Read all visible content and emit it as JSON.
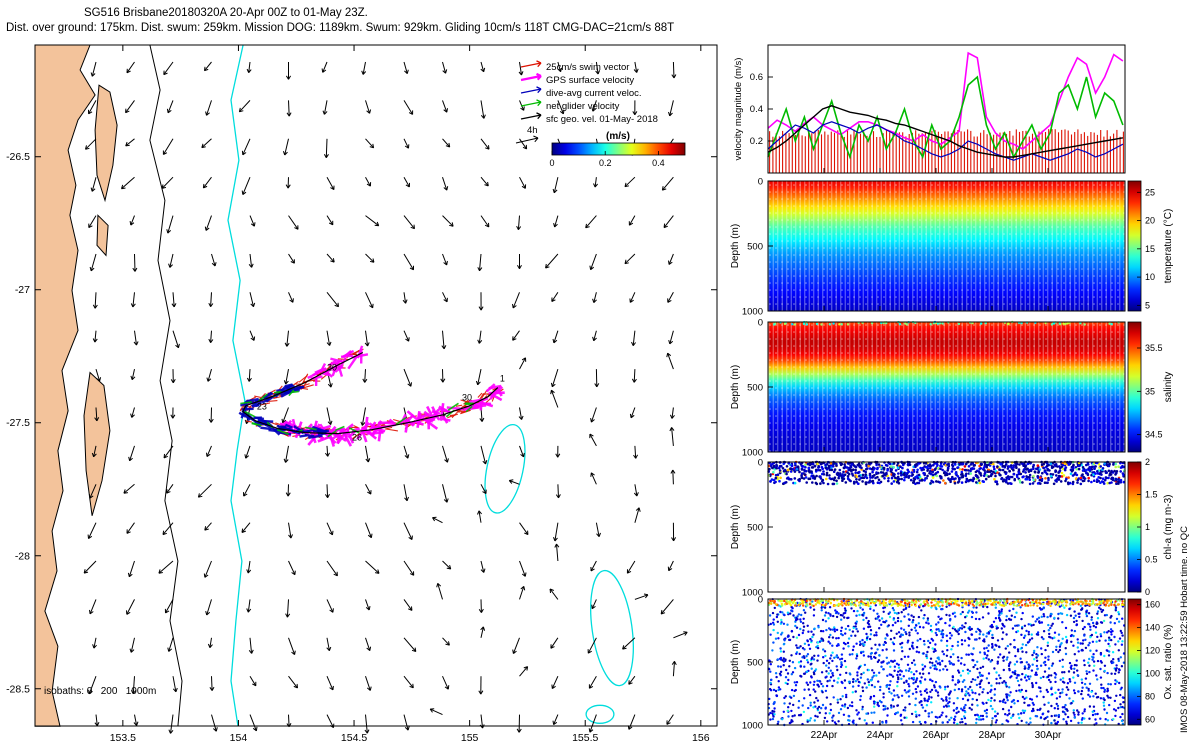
{
  "title": "SG516 Brisbane20180320A 20-Apr 00Z to 01-May 23Z.",
  "subtitle": "Dist. over ground: 175km. Dist. swum: 259km. Mission DOG: 1189km. Swum: 929km. Gliding 10cm/s 118T CMG-DAC=21cm/s 88T",
  "watermark": "IMOS 08-May-2018 13:22:59 Hobart time. no QC",
  "colors": {
    "land": "#f3c39b",
    "coast": "#000000",
    "isobath1000": "#00dddd",
    "swim": "#dd1100",
    "gps": "#ff00ff",
    "dive": "#0000bb",
    "net": "#00bb00",
    "geo": "#000000"
  },
  "time_axis": {
    "x_range_days": [
      0,
      12.75
    ],
    "tick_days": [
      2,
      4,
      6,
      8,
      10
    ],
    "tick_labels": [
      "22Apr",
      "24Apr",
      "26Apr",
      "28Apr",
      "30Apr"
    ]
  },
  "map": {
    "xticks": [
      153.5,
      154,
      154.5,
      155,
      155.5,
      156
    ],
    "yticks": [
      -26.5,
      -27,
      -27.5,
      -28,
      -28.5
    ],
    "isobath_note": "isobaths: 0   200   1000m",
    "legend_entries": [
      {
        "label": "25cm/s swim vector",
        "color_key": "swim"
      },
      {
        "label": "GPS surface velocity",
        "color_key": "gps"
      },
      {
        "label": "dive-avg current veloc.",
        "color_key": "dive"
      },
      {
        "label": "net glider velocity",
        "color_key": "net"
      },
      {
        "label": "sfc geo. vel. 01-May- 2018",
        "color_key": "geo"
      }
    ],
    "legend_scale_label": "4h",
    "colorbar": {
      "label": "(m/s)",
      "ticks": [
        0,
        0.2,
        0.4
      ],
      "range": [
        0,
        0.5
      ]
    }
  },
  "chart_data": [
    {
      "id": "map",
      "type": "scatter",
      "xlim": [
        153.12,
        156.07
      ],
      "ylim": [
        -28.64,
        -26.08
      ],
      "mainland": [
        [
          153.12,
          -26.08
        ],
        [
          153.358,
          -26.08
        ],
        [
          153.315,
          -26.174
        ],
        [
          153.38,
          -26.268
        ],
        [
          153.306,
          -26.362
        ],
        [
          153.263,
          -26.475
        ],
        [
          153.297,
          -26.607
        ],
        [
          153.271,
          -26.72
        ],
        [
          153.306,
          -26.852
        ],
        [
          153.28,
          -27.003
        ],
        [
          153.306,
          -27.153
        ],
        [
          153.237,
          -27.304
        ],
        [
          153.263,
          -27.455
        ],
        [
          153.219,
          -27.605
        ],
        [
          153.241,
          -27.756
        ],
        [
          153.194,
          -27.907
        ],
        [
          153.215,
          -28.057
        ],
        [
          153.163,
          -28.208
        ],
        [
          153.219,
          -28.34
        ],
        [
          153.194,
          -28.51
        ],
        [
          153.228,
          -28.641
        ],
        [
          153.12,
          -28.641
        ]
      ],
      "islands": [
        [
          [
            153.397,
            -26.231
          ],
          [
            153.444,
            -26.257
          ],
          [
            153.475,
            -26.381
          ],
          [
            153.457,
            -26.532
          ],
          [
            153.423,
            -26.664
          ],
          [
            153.388,
            -26.57
          ],
          [
            153.38,
            -26.4
          ]
        ],
        [
          [
            153.392,
            -26.72
          ],
          [
            153.436,
            -26.758
          ],
          [
            153.427,
            -26.871
          ],
          [
            153.388,
            -26.833
          ]
        ],
        [
          [
            153.358,
            -27.311
          ],
          [
            153.418,
            -27.36
          ],
          [
            153.444,
            -27.53
          ],
          [
            153.41,
            -27.718
          ],
          [
            153.367,
            -27.85
          ],
          [
            153.341,
            -27.68
          ],
          [
            153.332,
            -27.473
          ]
        ]
      ],
      "isobath_200m": [
        [
          153.617,
          -26.08
        ],
        [
          153.661,
          -26.249
        ],
        [
          153.617,
          -26.438
        ],
        [
          153.682,
          -26.664
        ],
        [
          153.652,
          -26.89
        ],
        [
          153.704,
          -27.116
        ],
        [
          153.661,
          -27.342
        ],
        [
          153.713,
          -27.568
        ],
        [
          153.682,
          -27.793
        ],
        [
          153.738,
          -28.02
        ],
        [
          153.704,
          -28.245
        ],
        [
          153.756,
          -28.471
        ],
        [
          153.738,
          -28.641
        ]
      ],
      "isobath_1000m": [
        [
          154.02,
          -26.08
        ],
        [
          153.968,
          -26.287
        ],
        [
          154.002,
          -26.513
        ],
        [
          153.955,
          -26.739
        ],
        [
          154.007,
          -26.965
        ],
        [
          153.976,
          -27.191
        ],
        [
          154.028,
          -27.417
        ],
        [
          153.994,
          -27.605
        ],
        [
          153.968,
          -27.793
        ],
        [
          154.015,
          -28.02
        ],
        [
          153.989,
          -28.245
        ],
        [
          153.968,
          -28.471
        ],
        [
          153.998,
          -28.641
        ]
      ],
      "seamount_contours": [
        {
          "cx": 155.153,
          "cy": -27.673,
          "rx": 0.078,
          "ry": 0.169,
          "rot": 12
        },
        {
          "cx": 155.616,
          "cy": -28.272,
          "rx": 0.086,
          "ry": 0.218,
          "rot": -8
        },
        {
          "cx": 155.564,
          "cy": -28.596,
          "rx": 0.06,
          "ry": 0.034,
          "rot": 0
        }
      ],
      "track": [
        [
          154.538,
          -27.236
        ],
        [
          154.417,
          -27.289
        ],
        [
          154.288,
          -27.349
        ],
        [
          154.145,
          -27.402
        ],
        [
          154.032,
          -27.436
        ],
        [
          154.019,
          -27.458
        ],
        [
          154.071,
          -27.492
        ],
        [
          154.171,
          -27.522
        ],
        [
          154.288,
          -27.537
        ],
        [
          154.43,
          -27.541
        ],
        [
          154.577,
          -27.526
        ],
        [
          154.733,
          -27.5
        ],
        [
          154.884,
          -27.47
        ],
        [
          155.001,
          -27.436
        ],
        [
          155.079,
          -27.402
        ],
        [
          155.122,
          -27.368
        ]
      ],
      "track_date_labels": [
        {
          "text": "20",
          "lon": 154.383,
          "lat": -27.304
        },
        {
          "text": "23",
          "lon": 154.08,
          "lat": -27.451
        },
        {
          "text": "26",
          "lon": 154.491,
          "lat": -27.567
        },
        {
          "text": "30",
          "lon": 154.967,
          "lat": -27.417
        },
        {
          "text": "1",
          "lon": 155.131,
          "lat": -27.345
        }
      ],
      "track_decorations": [
        {
          "name": "swim-vectors",
          "color_key": "swim",
          "count": 170,
          "t0": 0,
          "t1": 1,
          "len": 9,
          "width": 1.1,
          "spread": 5,
          "angle_jitter": 70
        },
        {
          "name": "gps-surface-right",
          "color_key": "gps",
          "count": 100,
          "t0": 0.45,
          "t1": 1,
          "len": 13,
          "width": 2.6,
          "spread": 6,
          "angle_jitter": 160
        },
        {
          "name": "gps-surface-left",
          "color_key": "gps",
          "count": 26,
          "t0": 0,
          "t1": 0.14,
          "len": 12,
          "width": 2.4,
          "spread": 6,
          "angle_jitter": 160
        },
        {
          "name": "dive-avg-current",
          "color_key": "dive",
          "count": 70,
          "t0": 0.18,
          "t1": 0.55,
          "len": 11,
          "width": 2.4,
          "spread": 4,
          "angle_jitter": 50
        },
        {
          "name": "net-glider",
          "color_key": "net",
          "count": 22,
          "t0": 0.1,
          "t1": 0.95,
          "len": 9,
          "width": 1.6,
          "spread": 5,
          "angle_jitter": 80
        }
      ],
      "surface_vector_grid": {
        "lon0": 153.384,
        "dlon": 0.1665,
        "cols": 16,
        "lat0": -26.144,
        "dlat": 0.1443,
        "rows": 18,
        "seed": 11,
        "base_len": 10,
        "len_var": 9
      }
    },
    {
      "id": "velocity",
      "type": "line",
      "ylabel": "velocity magnitude (m/s)",
      "ylim": [
        0,
        0.8
      ],
      "yticks": [
        0.2,
        0.4,
        0.6
      ],
      "x_start_day": 0,
      "x_step_day": 0.325,
      "swim_reference": {
        "label": "25cm/s swim vector",
        "value": 0.25,
        "color_key": "swim",
        "bar_count": 110
      },
      "series": [
        {
          "name": "GPS surface velocity",
          "color_key": "gps",
          "width": 1.6,
          "values": [
            0.28,
            0.33,
            0.3,
            0.26,
            0.31,
            0.35,
            0.3,
            0.27,
            0.24,
            0.28,
            0.32,
            0.32,
            0.3,
            0.27,
            0.25,
            0.22,
            0.2,
            0.24,
            0.2,
            0.18,
            0.22,
            0.26,
            0.75,
            0.72,
            0.35,
            0.25,
            0.2,
            0.18,
            0.15,
            0.2,
            0.25,
            0.3,
            0.45,
            0.6,
            0.72,
            0.68,
            0.5,
            0.6,
            0.74,
            0.7
          ]
        },
        {
          "name": "net glider velocity",
          "color_key": "net",
          "width": 1.6,
          "values": [
            0.1,
            0.25,
            0.4,
            0.2,
            0.35,
            0.15,
            0.3,
            0.45,
            0.25,
            0.1,
            0.3,
            0.2,
            0.35,
            0.15,
            0.25,
            0.4,
            0.2,
            0.1,
            0.3,
            0.15,
            0.2,
            0.35,
            0.55,
            0.6,
            0.3,
            0.15,
            0.25,
            0.1,
            0.2,
            0.3,
            0.15,
            0.25,
            0.5,
            0.55,
            0.4,
            0.6,
            0.35,
            0.5,
            0.45,
            0.3
          ]
        },
        {
          "name": "dive-avg current veloc.",
          "color_key": "dive",
          "width": 1.2,
          "values": [
            0.15,
            0.2,
            0.25,
            0.3,
            0.28,
            0.25,
            0.3,
            0.32,
            0.3,
            0.28,
            0.25,
            0.28,
            0.3,
            0.27,
            0.24,
            0.2,
            0.18,
            0.15,
            0.12,
            0.1,
            0.12,
            0.15,
            0.2,
            0.18,
            0.15,
            0.12,
            0.1,
            0.08,
            0.1,
            0.12,
            0.1,
            0.08,
            0.1,
            0.12,
            0.15,
            0.13,
            0.1,
            0.12,
            0.15,
            0.18
          ]
        },
        {
          "name": "sfc geo. vel.",
          "color_key": "geo",
          "width": 1.4,
          "values": [
            0.13,
            0.16,
            0.2,
            0.25,
            0.3,
            0.35,
            0.4,
            0.42,
            0.4,
            0.38,
            0.37,
            0.36,
            0.34,
            0.33,
            0.31,
            0.3,
            0.28,
            0.26,
            0.24,
            0.22,
            0.2,
            0.17,
            0.15,
            0.13,
            0.12,
            0.11,
            0.1,
            0.1,
            0.11,
            0.12,
            0.13,
            0.14,
            0.15,
            0.16,
            0.17,
            0.18,
            0.19,
            0.2,
            0.21,
            0.22
          ]
        }
      ]
    },
    {
      "id": "temperature",
      "type": "heatmap",
      "ylabel": "Depth (m)",
      "depth_lim": [
        0,
        1000
      ],
      "colorbar": {
        "label": "temperature (°C)",
        "ticks": [
          5,
          10,
          15,
          20,
          25
        ],
        "range": [
          4,
          27
        ]
      },
      "profile_depth": [
        0,
        50,
        100,
        150,
        200,
        250,
        300,
        350,
        400,
        450,
        500,
        550,
        600,
        650,
        700,
        750,
        800,
        850,
        900,
        950,
        1000
      ],
      "profile_value": [
        24.5,
        23.5,
        22,
        20.5,
        19,
        17.5,
        16,
        14.5,
        13.5,
        12.5,
        11.5,
        10.5,
        9.8,
        9.2,
        8.6,
        8,
        7.5,
        7,
        6.5,
        6,
        5.5
      ]
    },
    {
      "id": "salinity",
      "type": "heatmap",
      "ylabel": "Depth (m)",
      "depth_lim": [
        0,
        1000
      ],
      "colorbar": {
        "label": "salinity",
        "ticks": [
          34.5,
          35,
          35.5
        ],
        "range": [
          34.3,
          35.8
        ]
      },
      "profile_depth": [
        0,
        30,
        60,
        100,
        150,
        200,
        250,
        300,
        350,
        400,
        450,
        500,
        550,
        600,
        700,
        800,
        900,
        1000
      ],
      "profile_value": [
        35.5,
        35.58,
        35.62,
        35.66,
        35.7,
        35.68,
        35.62,
        35.5,
        35.32,
        35.12,
        34.95,
        34.8,
        34.7,
        34.62,
        34.52,
        34.46,
        34.42,
        34.4
      ],
      "surface_speckle": {
        "count": 70,
        "depth_max": 20,
        "value_min": 34.8,
        "value_max": 35.2
      }
    },
    {
      "id": "chl-a",
      "type": "scatter",
      "ylabel": "Depth (m)",
      "depth_lim": [
        0,
        1000
      ],
      "colorbar": {
        "label": "chl-a (mg m-3)",
        "ticks": [
          0,
          0.5,
          1,
          1.5,
          2
        ],
        "range": [
          0,
          2
        ]
      },
      "data_depth_max": 170,
      "columns": 100,
      "dots_per_column": 12,
      "background_value_range": [
        0.02,
        0.3
      ],
      "bloom_fraction": 0.12,
      "bloom_value_range": [
        0.5,
        1.8
      ],
      "seed": 5
    },
    {
      "id": "oxygen-saturation",
      "type": "scatter",
      "ylabel": "Depth (m)",
      "depth_lim": [
        0,
        1000
      ],
      "colorbar": {
        "label": "Ox. sat. ratio (%)",
        "ticks": [
          60,
          80,
          100,
          120,
          140,
          160
        ],
        "range": [
          55,
          165
        ]
      },
      "columns": 95,
      "dots_per_column": 22,
      "surface_dots_per_column": 5,
      "surface_depth_max": 55,
      "surface_value_range": [
        108,
        148
      ],
      "body_value_range": [
        60,
        104
      ],
      "seed": 9
    }
  ]
}
